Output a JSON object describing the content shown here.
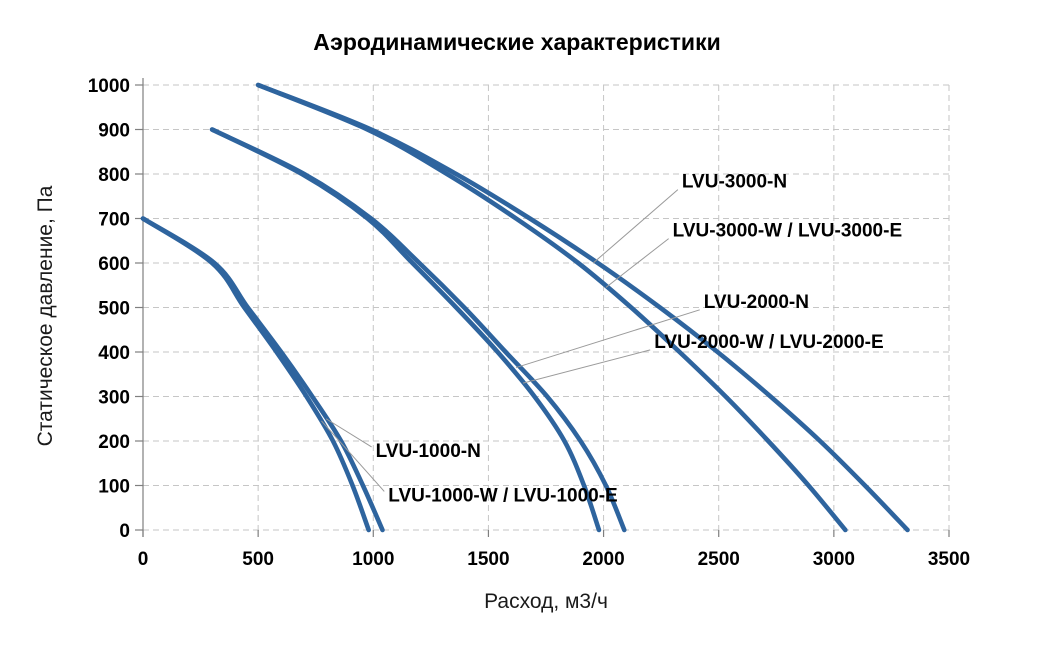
{
  "chart_data": {
    "type": "line",
    "title": "Аэродинамические характеристики",
    "xlabel": "Расход, м3/ч",
    "ylabel": "Статическое давление, Па",
    "xlim": [
      0,
      3500
    ],
    "ylim": [
      0,
      1000
    ],
    "xticks": [
      0,
      500,
      1000,
      1500,
      2000,
      2500,
      3000,
      3500
    ],
    "yticks": [
      0,
      100,
      200,
      300,
      400,
      500,
      600,
      700,
      800,
      900,
      1000
    ],
    "grid": "dashed",
    "legend_position": "none",
    "colors": {
      "curve": "#2e649e",
      "gridline": "#c6c6c6",
      "axis": "#7f7f7f",
      "leader": "#9a9a9a",
      "text": "#000000"
    },
    "series": [
      {
        "name": "LVU-1000-N",
        "points": [
          [
            0,
            700
          ],
          [
            310,
            600
          ],
          [
            455,
            500
          ],
          [
            600,
            400
          ],
          [
            735,
            300
          ],
          [
            860,
            200
          ],
          [
            955,
            100
          ],
          [
            1040,
            0
          ]
        ]
      },
      {
        "name": "LVU-1000-W / LVU-1000-E",
        "points": [
          [
            0,
            700
          ],
          [
            300,
            600
          ],
          [
            440,
            500
          ],
          [
            580,
            400
          ],
          [
            710,
            300
          ],
          [
            825,
            200
          ],
          [
            910,
            100
          ],
          [
            980,
            0
          ]
        ]
      },
      {
        "name": "LVU-2000-N",
        "points": [
          [
            300,
            900
          ],
          [
            700,
            800
          ],
          [
            990,
            700
          ],
          [
            1200,
            600
          ],
          [
            1395,
            500
          ],
          [
            1575,
            400
          ],
          [
            1755,
            300
          ],
          [
            1900,
            200
          ],
          [
            2010,
            100
          ],
          [
            2090,
            0
          ]
        ]
      },
      {
        "name": "LVU-2000-W / LVU-2000-E",
        "points": [
          [
            300,
            900
          ],
          [
            690,
            800
          ],
          [
            975,
            700
          ],
          [
            1170,
            600
          ],
          [
            1360,
            500
          ],
          [
            1540,
            400
          ],
          [
            1700,
            300
          ],
          [
            1830,
            200
          ],
          [
            1915,
            100
          ],
          [
            1980,
            0
          ]
        ]
      },
      {
        "name": "LVU-3000-N",
        "points": [
          [
            500,
            1000
          ],
          [
            990,
            900
          ],
          [
            1360,
            800
          ],
          [
            1680,
            700
          ],
          [
            1975,
            600
          ],
          [
            2245,
            500
          ],
          [
            2495,
            400
          ],
          [
            2725,
            300
          ],
          [
            2940,
            200
          ],
          [
            3135,
            100
          ],
          [
            3320,
            0
          ]
        ]
      },
      {
        "name": "LVU-3000-W / LVU-3000-E",
        "points": [
          [
            500,
            1000
          ],
          [
            975,
            900
          ],
          [
            1320,
            800
          ],
          [
            1620,
            700
          ],
          [
            1890,
            600
          ],
          [
            2120,
            500
          ],
          [
            2330,
            400
          ],
          [
            2530,
            300
          ],
          [
            2715,
            200
          ],
          [
            2890,
            100
          ],
          [
            3050,
            0
          ]
        ]
      }
    ],
    "annotations": [
      {
        "label": "LVU-3000-N",
        "label_at": {
          "q": 2340,
          "p": 785
        },
        "arrow_to": {
          "q": 1955,
          "p": 600
        }
      },
      {
        "label": "LVU-3000-W / LVU-3000-E",
        "label_at": {
          "q": 2300,
          "p": 675
        },
        "arrow_to": {
          "q": 2010,
          "p": 545
        }
      },
      {
        "label": "LVU-2000-N",
        "label_at": {
          "q": 2435,
          "p": 515
        },
        "arrow_to": {
          "q": 1620,
          "p": 365
        }
      },
      {
        "label": "LVU-2000-W / LVU-2000-E",
        "label_at": {
          "q": 2220,
          "p": 425
        },
        "arrow_to": {
          "q": 1650,
          "p": 330
        }
      },
      {
        "label": "LVU-1000-N",
        "label_at": {
          "q": 1010,
          "p": 180
        },
        "arrow_to": {
          "q": 795,
          "p": 250
        }
      },
      {
        "label": "LVU-1000-W / LVU-1000-E",
        "label_at": {
          "q": 1065,
          "p": 80
        },
        "arrow_to": {
          "q": 775,
          "p": 245
        }
      }
    ]
  }
}
